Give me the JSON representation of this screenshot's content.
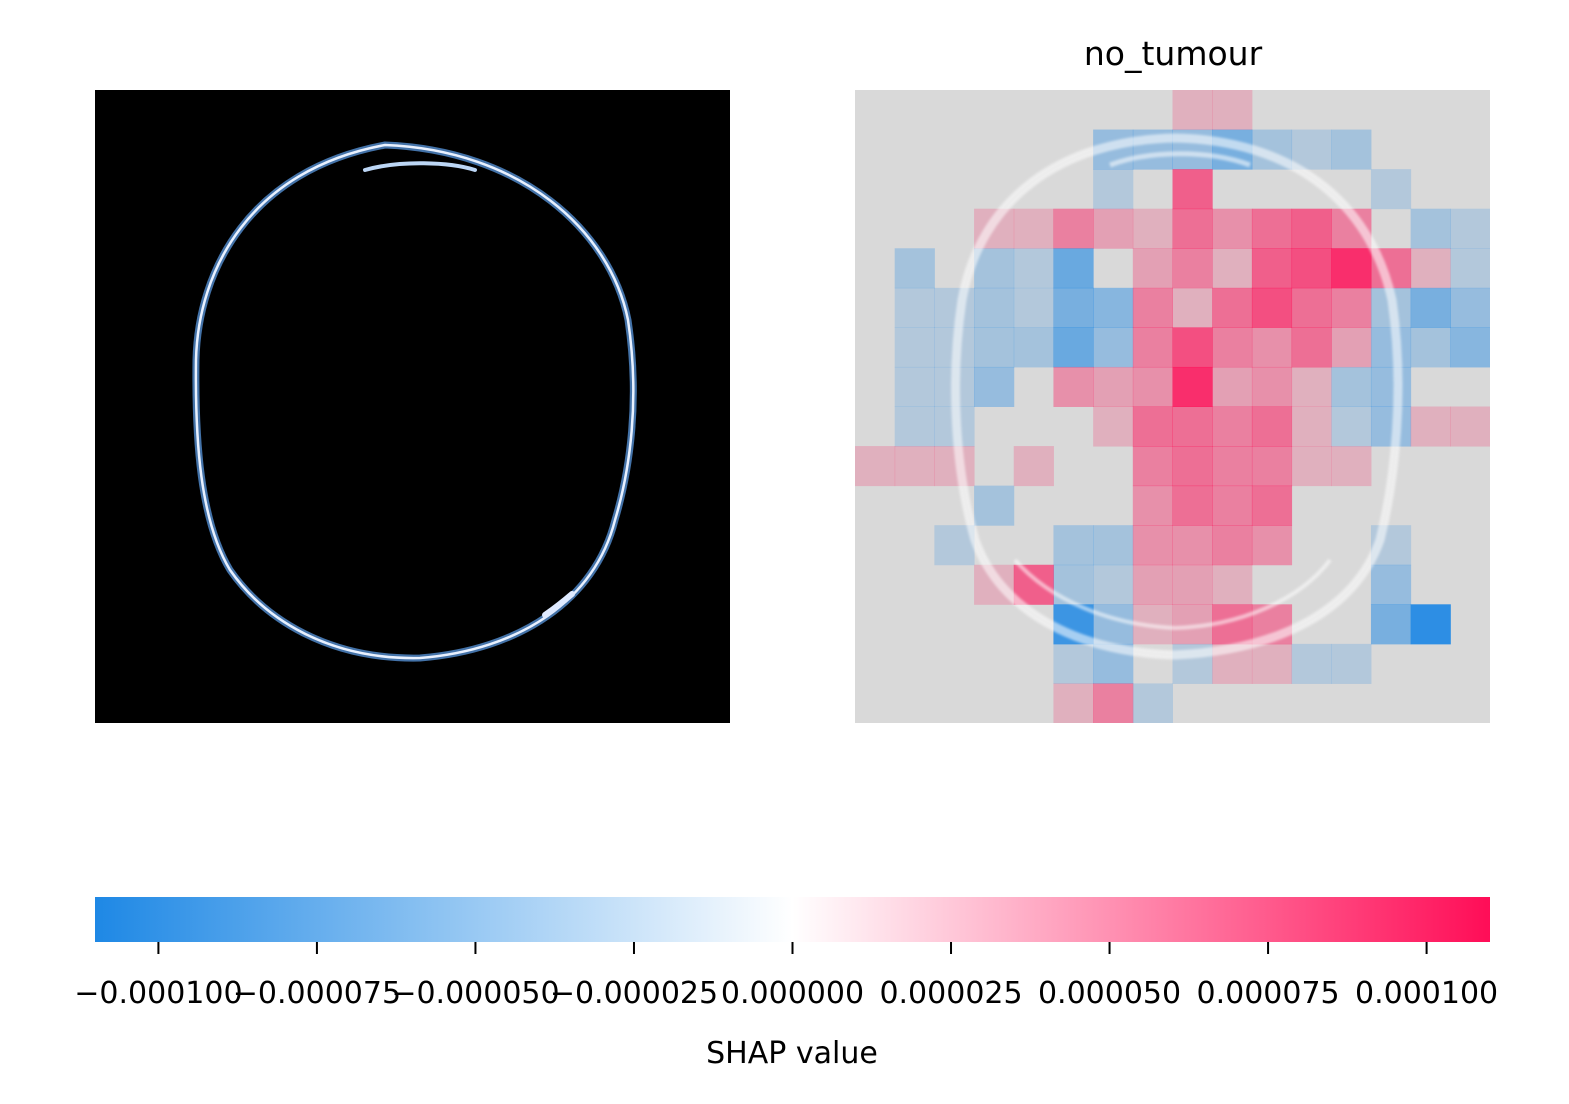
{
  "chart_data": {
    "type": "heatmap",
    "panels": [
      {
        "name": "input-image",
        "title": "",
        "content": "brain MRI slice (black background, skull outline rendered with a blue/white colormap)"
      },
      {
        "name": "shap-heatmap",
        "title": "no_tumour",
        "grid_rows": 16,
        "grid_cols": 16,
        "values_scale": 0.0001,
        "values": [
          [
            0,
            0,
            0,
            0,
            0,
            0,
            0,
            0,
            0.1,
            0.1,
            0,
            0,
            0,
            0,
            0,
            0
          ],
          [
            0,
            0,
            0,
            0,
            0,
            0,
            -0.3,
            -0.3,
            -0.3,
            -0.5,
            -0.2,
            -0.1,
            -0.2,
            0,
            0,
            0
          ],
          [
            0,
            0,
            0,
            0,
            0,
            0,
            -0.1,
            0,
            0.6,
            0,
            0,
            0,
            0,
            -0.1,
            0,
            0
          ],
          [
            0,
            0,
            0,
            0.1,
            0.1,
            0.4,
            0.2,
            0.1,
            0.5,
            0.3,
            0.5,
            0.6,
            0.4,
            0,
            -0.2,
            -0.1
          ],
          [
            0,
            -0.2,
            0,
            -0.2,
            -0.1,
            -0.6,
            0,
            0.2,
            0.4,
            0.1,
            0.6,
            0.7,
            0.9,
            0.5,
            0.1,
            -0.1
          ],
          [
            0,
            -0.1,
            -0.1,
            -0.2,
            -0.1,
            -0.5,
            -0.4,
            0.4,
            0.1,
            0.5,
            0.7,
            0.5,
            0.4,
            -0.2,
            -0.5,
            -0.3
          ],
          [
            0,
            -0.1,
            -0.1,
            -0.2,
            -0.2,
            -0.6,
            -0.3,
            0.4,
            0.7,
            0.4,
            0.3,
            0.5,
            0.2,
            -0.3,
            -0.2,
            -0.4
          ],
          [
            0,
            -0.1,
            -0.1,
            -0.3,
            0,
            0.3,
            0.2,
            0.3,
            0.9,
            0.2,
            0.3,
            0.1,
            -0.2,
            -0.3,
            0,
            0
          ],
          [
            0,
            -0.1,
            -0.1,
            0,
            0,
            0,
            0.1,
            0.5,
            0.5,
            0.4,
            0.5,
            0.1,
            -0.1,
            -0.3,
            0.1,
            0.1
          ],
          [
            0.1,
            0.1,
            0.1,
            0,
            0.1,
            0,
            0,
            0.4,
            0.5,
            0.4,
            0.4,
            0.1,
            0.1,
            0,
            0,
            0
          ],
          [
            0,
            0,
            0,
            -0.2,
            0,
            0,
            0,
            0.3,
            0.5,
            0.4,
            0.5,
            0,
            0,
            0,
            0,
            0
          ],
          [
            0,
            0,
            -0.1,
            0,
            0,
            -0.2,
            -0.2,
            0.3,
            0.3,
            0.4,
            0.3,
            0,
            0,
            -0.1,
            0,
            0
          ],
          [
            0,
            0,
            0,
            0.1,
            0.6,
            -0.2,
            -0.1,
            0.2,
            0.2,
            0.1,
            0,
            0,
            0,
            -0.3,
            0,
            0
          ],
          [
            0,
            0,
            0,
            0,
            0,
            -0.9,
            -0.3,
            0.1,
            0.2,
            0.5,
            0.4,
            0,
            0,
            -0.5,
            -1.0,
            0
          ],
          [
            0,
            0,
            0,
            0,
            0,
            -0.1,
            -0.3,
            0,
            -0.1,
            0.1,
            0.1,
            -0.1,
            -0.1,
            0,
            0,
            0
          ],
          [
            0,
            0,
            0,
            0,
            0,
            0.1,
            0.4,
            -0.1,
            0,
            0,
            0,
            0,
            0,
            0,
            0,
            0
          ]
        ]
      }
    ],
    "colorbar": {
      "label": "SHAP value",
      "range": [
        -0.00011,
        0.00011
      ],
      "ticks": [
        -0.0001,
        -7.5e-05,
        -5e-05,
        -2.5e-05,
        0,
        2.5e-05,
        5e-05,
        7.5e-05,
        0.0001
      ],
      "tick_labels": [
        "−0.000100",
        "−0.000075",
        "−0.000050",
        "−0.000025",
        "0.000000",
        "0.000025",
        "0.000050",
        "0.000075",
        "0.000100"
      ],
      "colors": {
        "negative": "#1e88e5",
        "zero": "#ffffff",
        "positive": "#ff0d57"
      }
    }
  }
}
